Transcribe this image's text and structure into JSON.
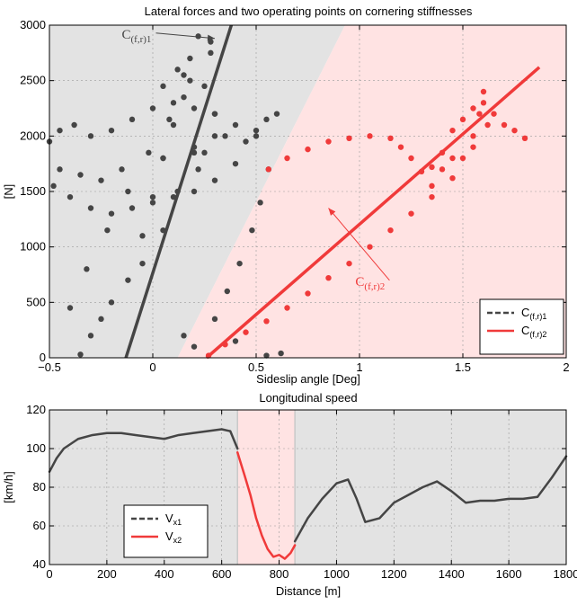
{
  "colors": {
    "c1": "#454545",
    "c2": "#f03a3a",
    "region1": "#e3e3e3",
    "region2": "#ffe3e3",
    "plot_bg": "#ffffff"
  },
  "chart_data": [
    {
      "type": "scatter",
      "title": "Lateral forces and two operating points on cornering stiffnesses",
      "xlabel": "Sideslip angle [Deg]",
      "ylabel": "[N]",
      "xlim": [
        -0.5,
        2
      ],
      "ylim": [
        0,
        3000
      ],
      "xticks": [
        -0.5,
        0,
        0.5,
        1,
        1.5,
        2
      ],
      "xtick_labels": [
        "−0.5",
        "0",
        "0.5",
        "1",
        "1.5",
        "2"
      ],
      "yticks": [
        0,
        500,
        1000,
        1500,
        2000,
        2500,
        3000
      ],
      "ytick_labels": [
        "0",
        "500",
        "1000",
        "1500",
        "2000",
        "2500",
        "3000"
      ],
      "grid": true,
      "legend_position": "bottom-right",
      "regions": [
        {
          "label": "C(f,r)1",
          "color": "#e3e3e3",
          "polygon": [
            [
              -0.5,
              0
            ],
            [
              0.12,
              0
            ],
            [
              0.93,
              3000
            ],
            [
              -0.5,
              3000
            ]
          ]
        },
        {
          "label": "C(f,r)2",
          "color": "#ffe3e3",
          "polygon": [
            [
              0.12,
              0
            ],
            [
              2,
              0
            ],
            [
              2,
              3000
            ],
            [
              0.93,
              3000
            ]
          ]
        }
      ],
      "series": [
        {
          "label": "C(f,r)1",
          "style": "dashed",
          "color": "#454545",
          "points": [
            [
              -0.35,
              30
            ],
            [
              -0.25,
              350
            ],
            [
              -0.12,
              700
            ],
            [
              -0.05,
              1100
            ],
            [
              0.0,
              1450
            ],
            [
              0.05,
              1800
            ],
            [
              0.1,
              2100
            ],
            [
              0.15,
              2350
            ],
            [
              -0.3,
              200
            ],
            [
              -0.2,
              500
            ],
            [
              -0.05,
              850
            ],
            [
              0.05,
              1150
            ],
            [
              0.12,
              1500
            ],
            [
              0.2,
              1850
            ],
            [
              0.3,
              2200
            ],
            [
              0.25,
              2450
            ],
            [
              -0.4,
              450
            ],
            [
              -0.32,
              800
            ],
            [
              -0.22,
              1150
            ],
            [
              -0.12,
              1500
            ],
            [
              -0.02,
              1850
            ],
            [
              0.08,
              2150
            ],
            [
              0.18,
              2500
            ],
            [
              0.28,
              2750
            ],
            [
              -0.5,
              1950
            ],
            [
              -0.45,
              2050
            ],
            [
              -0.38,
              2100
            ],
            [
              -0.3,
              2000
            ],
            [
              -0.2,
              2050
            ],
            [
              -0.1,
              2150
            ],
            [
              0.0,
              2250
            ],
            [
              0.1,
              2300
            ],
            [
              0.2,
              2250
            ],
            [
              0.3,
              2200
            ],
            [
              0.4,
              2100
            ],
            [
              0.5,
              2000
            ],
            [
              0.55,
              2150
            ],
            [
              0.6,
              2200
            ],
            [
              -0.48,
              1550
            ],
            [
              -0.4,
              1450
            ],
            [
              -0.3,
              1350
            ],
            [
              -0.2,
              1300
            ],
            [
              -0.1,
              1350
            ],
            [
              0.0,
              1400
            ],
            [
              0.1,
              1450
            ],
            [
              0.2,
              1500
            ],
            [
              -0.45,
              1700
            ],
            [
              -0.35,
              1650
            ],
            [
              -0.25,
              1600
            ],
            [
              -0.15,
              1700
            ],
            [
              0.05,
              1800
            ],
            [
              0.2,
              1900
            ],
            [
              0.35,
              2000
            ],
            [
              0.05,
              2450
            ],
            [
              0.12,
              2600
            ],
            [
              0.18,
              2700
            ],
            [
              0.22,
              2900
            ],
            [
              0.28,
              2850
            ],
            [
              0.15,
              2550
            ],
            [
              0.3,
              350
            ],
            [
              0.36,
              600
            ],
            [
              0.42,
              850
            ],
            [
              0.48,
              1150
            ],
            [
              0.52,
              1400
            ],
            [
              0.56,
              1700
            ],
            [
              0.2,
              100
            ],
            [
              0.15,
              200
            ],
            [
              0.4,
              150
            ],
            [
              0.55,
              20
            ],
            [
              0.62,
              40
            ],
            [
              0.3,
              2000
            ],
            [
              0.25,
              1850
            ],
            [
              0.22,
              1700
            ],
            [
              0.3,
              1600
            ],
            [
              0.4,
              1750
            ],
            [
              0.45,
              1950
            ],
            [
              0.5,
              2050
            ]
          ]
        },
        {
          "label": "C(f,r)2",
          "style": "solid",
          "color": "#f03a3a",
          "points": [
            [
              0.56,
              1700
            ],
            [
              0.65,
              1800
            ],
            [
              0.75,
              1880
            ],
            [
              0.85,
              1950
            ],
            [
              0.95,
              1980
            ],
            [
              1.05,
              2000
            ],
            [
              1.15,
              1980
            ],
            [
              1.2,
              1900
            ],
            [
              1.25,
              1800
            ],
            [
              1.3,
              1680
            ],
            [
              1.35,
              1720
            ],
            [
              1.4,
              1850
            ],
            [
              1.45,
              2050
            ],
            [
              1.5,
              2150
            ],
            [
              1.55,
              2250
            ],
            [
              1.6,
              2300
            ],
            [
              1.65,
              2200
            ],
            [
              1.7,
              2100
            ],
            [
              1.75,
              2050
            ],
            [
              1.8,
              1980
            ],
            [
              0.27,
              20
            ],
            [
              0.35,
              120
            ],
            [
              0.45,
              230
            ],
            [
              0.55,
              330
            ],
            [
              0.65,
              450
            ],
            [
              0.75,
              580
            ],
            [
              0.85,
              720
            ],
            [
              0.95,
              850
            ],
            [
              1.05,
              1000
            ],
            [
              1.15,
              1150
            ],
            [
              1.25,
              1300
            ],
            [
              1.35,
              1450
            ],
            [
              1.45,
              1620
            ],
            [
              1.5,
              1800
            ],
            [
              1.55,
              2000
            ],
            [
              1.58,
              2200
            ],
            [
              1.6,
              2400
            ],
            [
              1.62,
              2100
            ],
            [
              1.55,
              1900
            ],
            [
              1.45,
              1800
            ],
            [
              1.4,
              1700
            ],
            [
              1.35,
              1550
            ]
          ]
        }
      ],
      "fit_lines": [
        {
          "label": "C(f,r)1",
          "color": "#454545",
          "from": [
            -0.13,
            0
          ],
          "to": [
            0.38,
            3000
          ]
        },
        {
          "label": "C(f,r)2",
          "color": "#f03a3a",
          "from": [
            0.26,
            0
          ],
          "to": [
            1.87,
            2620
          ]
        }
      ],
      "annotations": [
        {
          "main": "C",
          "sub": "(f,r)1",
          "color": "#454545",
          "text_at": [
            -0.15,
            2880
          ],
          "arrow_to": [
            0.3,
            2880
          ]
        },
        {
          "main": "C",
          "sub": "(f,r)2",
          "color": "#f03a3a",
          "text_at": [
            0.98,
            650
          ],
          "arrow_to": [
            0.85,
            1350
          ]
        }
      ],
      "legend": [
        {
          "main": "C",
          "sub": "(f,r)1",
          "style": "dashed",
          "color": "#454545"
        },
        {
          "main": "C",
          "sub": "(f,r)2",
          "style": "solid",
          "color": "#f03a3a"
        }
      ]
    },
    {
      "type": "line",
      "title": "Longitudinal speed",
      "xlabel": "Distance [m]",
      "ylabel": "[km/h]",
      "xlim": [
        0,
        1800
      ],
      "ylim": [
        40,
        120
      ],
      "xticks": [
        0,
        200,
        400,
        600,
        800,
        1000,
        1200,
        1400,
        1600,
        1800
      ],
      "xtick_labels": [
        "0",
        "200",
        "400",
        "600",
        "800",
        "1000",
        "1200",
        "1400",
        "1600",
        "1800"
      ],
      "yticks": [
        40,
        60,
        80,
        100,
        120
      ],
      "ytick_labels": [
        "40",
        "60",
        "80",
        "100",
        "120"
      ],
      "grid": true,
      "legend_position": "bottom-left",
      "regions": [
        {
          "label": "V_x1",
          "color": "#e3e3e3",
          "x_range": [
            0,
            655
          ]
        },
        {
          "label": "V_x2",
          "color": "#ffe3e3",
          "x_range": [
            655,
            855
          ]
        },
        {
          "label": "V_x1",
          "color": "#e3e3e3",
          "x_range": [
            855,
            1800
          ]
        }
      ],
      "series": [
        {
          "label": "V_x1",
          "style": "dashed",
          "color": "#454545",
          "x": [
            0,
            25,
            50,
            100,
            150,
            200,
            250,
            300,
            350,
            400,
            450,
            500,
            550,
            600,
            630,
            655
          ],
          "y": [
            88,
            95,
            100,
            105,
            107,
            108,
            108,
            107,
            106,
            105,
            107,
            108,
            109,
            110,
            109,
            100
          ]
        },
        {
          "label": "V_x2",
          "style": "solid",
          "color": "#f03a3a",
          "x": [
            655,
            680,
            700,
            720,
            740,
            760,
            780,
            800,
            820,
            840,
            855
          ],
          "y": [
            98,
            86,
            76,
            64,
            55,
            48,
            44,
            45,
            43,
            46,
            50
          ]
        },
        {
          "label": "V_x1",
          "style": "dashed",
          "color": "#454545",
          "x": [
            855,
            900,
            950,
            1000,
            1040,
            1070,
            1100,
            1150,
            1200,
            1250,
            1300,
            1350,
            1400,
            1450,
            1500,
            1550,
            1600,
            1650,
            1700,
            1750,
            1800
          ],
          "y": [
            52,
            64,
            74,
            82,
            84,
            74,
            62,
            64,
            72,
            76,
            80,
            83,
            78,
            72,
            73,
            73,
            74,
            74,
            75,
            85,
            96
          ]
        }
      ],
      "legend": [
        {
          "main": "V",
          "sub": "x1",
          "style": "dashed",
          "color": "#454545"
        },
        {
          "main": "V",
          "sub": "x2",
          "style": "solid",
          "color": "#f03a3a"
        }
      ]
    }
  ]
}
